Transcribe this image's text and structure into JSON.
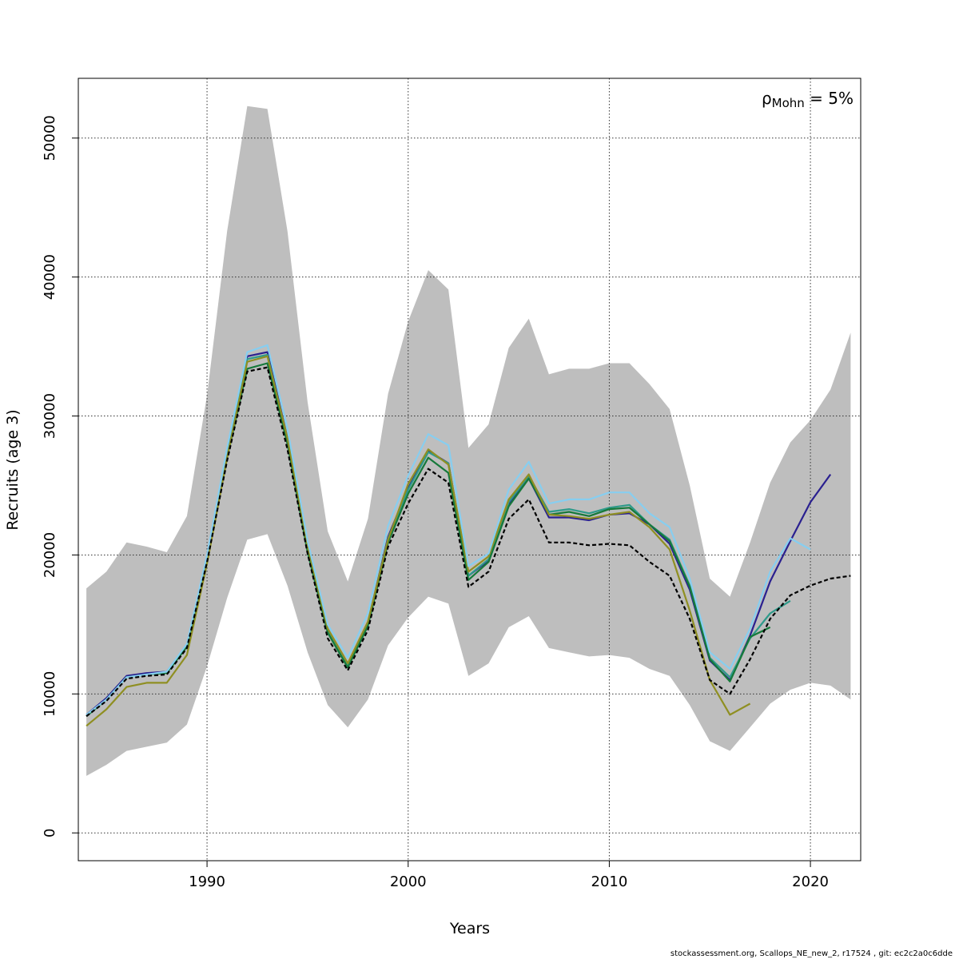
{
  "chart_data": {
    "type": "line",
    "xlabel": "Years",
    "ylabel": "Recruits (age 3)",
    "xlim": [
      1983.6,
      2022.5
    ],
    "ylim": [
      -2000,
      54300
    ],
    "x_ticks": [
      1990,
      2000,
      2010,
      2020
    ],
    "x_tick_labels": [
      "1990",
      "2000",
      "2010",
      "2020"
    ],
    "y_ticks": [
      0,
      10000,
      20000,
      30000,
      40000,
      50000
    ],
    "y_tick_labels": [
      "0",
      "10000",
      "20000",
      "30000",
      "40000",
      "50000"
    ],
    "grid": true,
    "annotation": {
      "symbol": "ρ",
      "subscript": "Mohn",
      "text": " = 5%",
      "position": "top-right"
    },
    "footer": "stockassessment.org, Scallops_NE_new_2, r17524 , git: ec2c2a0c6dde",
    "confidence_band": {
      "color": "#bebebe",
      "x": [
        1984,
        1985,
        1986,
        1987,
        1988,
        1989,
        1990,
        1991,
        1992,
        1993,
        1994,
        1995,
        1996,
        1997,
        1998,
        1999,
        2000,
        2001,
        2002,
        2003,
        2004,
        2005,
        2006,
        2007,
        2008,
        2009,
        2010,
        2011,
        2012,
        2013,
        2014,
        2015,
        2016,
        2017,
        2018,
        2019,
        2020,
        2021,
        2022
      ],
      "upper": [
        17600,
        18800,
        20900,
        20600,
        20200,
        22800,
        31500,
        43300,
        52300,
        52100,
        43300,
        31000,
        21700,
        18100,
        22600,
        31600,
        36800,
        40500,
        39100,
        27700,
        29400,
        34900,
        37000,
        33000,
        33400,
        33400,
        33800,
        33800,
        32300,
        30500,
        25000,
        18300,
        17000,
        20900,
        25200,
        28100,
        29700,
        31900,
        36000
      ],
      "lower": [
        4100,
        4900,
        5900,
        6200,
        6500,
        7800,
        12000,
        16900,
        21100,
        21500,
        17800,
        13000,
        9200,
        7600,
        9600,
        13500,
        15500,
        17000,
        16500,
        11300,
        12200,
        14800,
        15600,
        13300,
        13000,
        12700,
        12800,
        12600,
        11800,
        11300,
        9200,
        6600,
        5900,
        7600,
        9300,
        10300,
        10800,
        10600,
        9600
      ]
    },
    "series": [
      {
        "color": "#000000",
        "dashed": true,
        "x": [
          1984,
          1985,
          1986,
          1987,
          1988,
          1989,
          1990,
          1991,
          1992,
          1993,
          1994,
          1995,
          1996,
          1997,
          1998,
          1999,
          2000,
          2001,
          2002,
          2003,
          2004,
          2005,
          2006,
          2007,
          2008,
          2009,
          2010,
          2011,
          2012,
          2013,
          2014,
          2015,
          2016,
          2017,
          2018,
          2019,
          2020,
          2021,
          2022
        ],
        "y": [
          8400,
          9500,
          11100,
          11300,
          11400,
          13300,
          19500,
          26800,
          33200,
          33500,
          27600,
          20100,
          14000,
          11700,
          14600,
          20600,
          23700,
          26200,
          25200,
          17700,
          18800,
          22600,
          24000,
          20900,
          20900,
          20700,
          20800,
          20700,
          19500,
          18500,
          15400,
          11000,
          10000,
          12500,
          15400,
          17100,
          17800,
          18300,
          18500
        ]
      },
      {
        "color": "#2a2090",
        "dashed": false,
        "x": [
          1984,
          1985,
          1986,
          1987,
          1988,
          1989,
          1990,
          1991,
          1992,
          1993,
          1994,
          1995,
          1996,
          1997,
          1998,
          1999,
          2000,
          2001,
          2002,
          2003,
          2004,
          2005,
          2006,
          2007,
          2008,
          2009,
          2010,
          2011,
          2012,
          2013,
          2014,
          2015,
          2016,
          2017,
          2018,
          2019,
          2020,
          2021
        ],
        "y": [
          8500,
          9700,
          11300,
          11500,
          11600,
          13500,
          19800,
          27300,
          34300,
          34600,
          28400,
          20500,
          14500,
          12100,
          15100,
          21300,
          24800,
          27500,
          26600,
          18500,
          19600,
          23700,
          25500,
          22700,
          22700,
          22500,
          22900,
          23000,
          22200,
          20800,
          17500,
          12400,
          11000,
          14200,
          18100,
          21000,
          23800,
          25800
        ]
      },
      {
        "color": "#2e9a8a",
        "dashed": false,
        "x": [
          1984,
          1985,
          1986,
          1987,
          1988,
          1989,
          1990,
          1991,
          1992,
          1993,
          1994,
          1995,
          1996,
          1997,
          1998,
          1999,
          2000,
          2001,
          2002,
          2003,
          2004,
          2005,
          2006,
          2007,
          2008,
          2009,
          2010,
          2011,
          2012,
          2013,
          2014,
          2015,
          2016,
          2017,
          2018,
          2019
        ],
        "y": [
          8400,
          9600,
          11200,
          11400,
          11500,
          13400,
          19600,
          27100,
          34100,
          34400,
          28300,
          20400,
          14500,
          12100,
          15100,
          21200,
          24700,
          27400,
          26600,
          18500,
          19700,
          23800,
          25700,
          23100,
          23300,
          23000,
          23400,
          23600,
          22200,
          21100,
          17800,
          12600,
          11200,
          14000,
          15800,
          16700
        ]
      },
      {
        "color": "#16793a",
        "dashed": false,
        "x": [
          1984,
          1985,
          1986,
          1987,
          1988,
          1989,
          1990,
          1991,
          1992,
          1993,
          1994,
          1995,
          1996,
          1997,
          1998,
          1999,
          2000,
          2001,
          2002,
          2003,
          2004,
          2005,
          2006,
          2007,
          2008,
          2009,
          2010,
          2011,
          2012,
          2013,
          2014,
          2015,
          2016,
          2017,
          2018
        ],
        "y": [
          8400,
          9600,
          11200,
          11400,
          11500,
          13400,
          19600,
          27000,
          33400,
          33800,
          28000,
          20200,
          14400,
          11900,
          14900,
          20900,
          24400,
          27000,
          25900,
          18200,
          19500,
          23500,
          25500,
          22900,
          23100,
          22800,
          23300,
          23400,
          22200,
          21000,
          17700,
          12500,
          10900,
          14100,
          14800
        ]
      },
      {
        "color": "#8f8f22",
        "dashed": false,
        "x": [
          1984,
          1985,
          1986,
          1987,
          1988,
          1989,
          1990,
          1991,
          1992,
          1993,
          1994,
          1995,
          1996,
          1997,
          1998,
          1999,
          2000,
          2001,
          2002,
          2003,
          2004,
          2005,
          2006,
          2007,
          2008,
          2009,
          2010,
          2011,
          2012,
          2013,
          2014,
          2015,
          2016,
          2017
        ],
        "y": [
          7700,
          8900,
          10500,
          10800,
          10800,
          12800,
          19400,
          27000,
          33900,
          34300,
          28400,
          20600,
          14700,
          12200,
          15200,
          21100,
          25100,
          27600,
          26500,
          18800,
          19900,
          24000,
          25800,
          22900,
          22800,
          22600,
          22900,
          23100,
          22000,
          20400,
          16000,
          11000,
          8500,
          9300
        ]
      },
      {
        "color": "#87cef0",
        "dashed": false,
        "x": [
          1984,
          1985,
          1986,
          1987,
          1988,
          1989,
          1990,
          1991,
          1992,
          1993,
          1994,
          1995,
          1996,
          1997,
          1998,
          1999,
          2000,
          2001,
          2002,
          2003,
          2004,
          2005,
          2006,
          2007,
          2008,
          2009,
          2010,
          2011,
          2012,
          2013,
          2014,
          2015,
          2016,
          2017,
          2018,
          2019,
          2020
        ],
        "y": [
          8500,
          9600,
          11200,
          11400,
          11600,
          13600,
          20000,
          27700,
          34600,
          35100,
          29100,
          21000,
          15000,
          12600,
          15800,
          22100,
          25700,
          28700,
          27900,
          19200,
          20100,
          24700,
          26700,
          23700,
          24000,
          24000,
          24500,
          24500,
          23000,
          22000,
          18300,
          13000,
          11800,
          14700,
          18800,
          21200,
          20400
        ]
      }
    ]
  }
}
